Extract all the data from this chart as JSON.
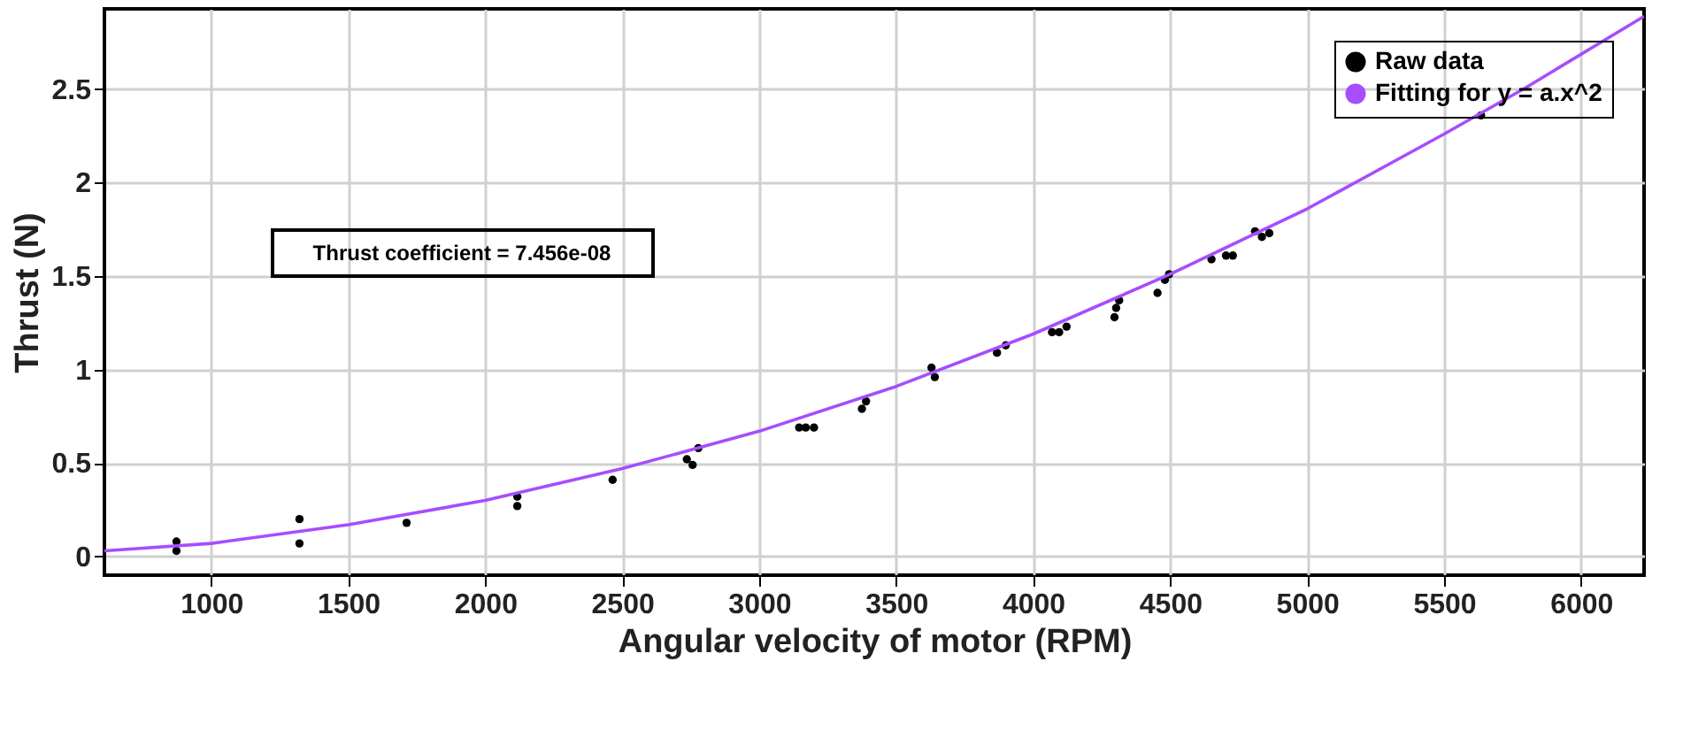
{
  "chart_data": {
    "type": "scatter",
    "xlabel": "Angular velocity of motor (RPM)",
    "ylabel": "Thrust (N)",
    "xlim": [
      610,
      6230
    ],
    "ylim": [
      -0.1,
      2.93
    ],
    "xticks": [
      1000,
      1500,
      2000,
      2500,
      3000,
      3500,
      4000,
      4500,
      5000,
      5500,
      6000
    ],
    "yticks": [
      0,
      0.5,
      1,
      1.5,
      2,
      2.5
    ],
    "grid": true,
    "legend": "top right",
    "marker": "circle",
    "annotations": [
      "Thrust coefficient = 7.456e-08"
    ],
    "series": [
      {
        "name": "Raw data",
        "type": "scatter",
        "color": "#000000",
        "x": [
          873,
          873,
          1322,
          1322,
          1713,
          2117,
          2117,
          2465,
          2736,
          2757,
          2778,
          3146,
          3170,
          3200,
          3375,
          3390,
          3629,
          3641,
          3868,
          3900,
          4069,
          4095,
          4122,
          4297,
          4303,
          4314,
          4454,
          4481,
          4496,
          4651,
          4704,
          4729,
          4810,
          4835,
          4862,
          5635
        ],
        "values": [
          0.08,
          0.03,
          0.2,
          0.07,
          0.18,
          0.32,
          0.27,
          0.41,
          0.52,
          0.49,
          0.58,
          0.69,
          0.69,
          0.69,
          0.79,
          0.83,
          1.01,
          0.96,
          1.09,
          1.13,
          1.2,
          1.2,
          1.23,
          1.28,
          1.33,
          1.37,
          1.41,
          1.48,
          1.51,
          1.59,
          1.61,
          1.61,
          1.74,
          1.71,
          1.73,
          2.36
        ]
      },
      {
        "name": "Fitting for y = a.x^2",
        "type": "line",
        "marker": "none",
        "color": "#a64dff",
        "line_style": "solid",
        "x": [
          610,
          1000,
          1500,
          2000,
          2500,
          3000,
          3500,
          4000,
          4500,
          5000,
          5500,
          5800,
          6230
        ],
        "values": [
          0.03,
          0.07,
          0.17,
          0.3,
          0.47,
          0.67,
          0.91,
          1.19,
          1.51,
          1.86,
          2.26,
          2.51,
          2.89
        ]
      }
    ]
  }
}
